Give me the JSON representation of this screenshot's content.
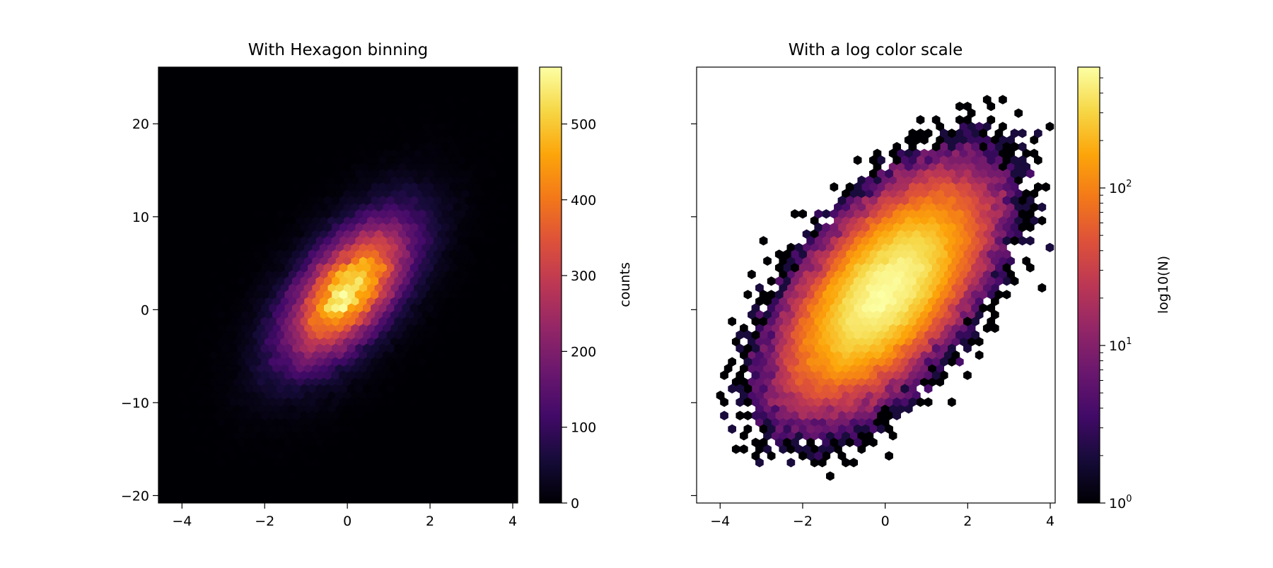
{
  "chart_data": [
    {
      "type": "hexbin",
      "title": "With Hexagon binning",
      "xlim": [
        -4.57,
        4.12
      ],
      "ylim": [
        -20.8,
        26.1
      ],
      "xticks": [
        -4,
        -2,
        0,
        2,
        4
      ],
      "xtick_labels": [
        "−4",
        "−2",
        "0",
        "2",
        "4"
      ],
      "yticks": [
        -20,
        -10,
        0,
        10,
        20
      ],
      "ytick_labels": [
        "−20",
        "−10",
        "0",
        "10",
        "20"
      ],
      "gridsize": 50,
      "color_scale": "linear",
      "colormap": "inferno",
      "colorbar": {
        "label": "counts",
        "range": [
          0,
          575
        ],
        "ticks": [
          0,
          100,
          200,
          300,
          400,
          500
        ],
        "tick_labels": [
          "0",
          "100",
          "200",
          "300",
          "400",
          "500"
        ]
      }
    },
    {
      "type": "hexbin",
      "title": "With a log color scale",
      "xlim": [
        -4.57,
        4.12
      ],
      "ylim": [
        -20.8,
        26.1
      ],
      "xticks": [
        -4,
        -2,
        0,
        2,
        4
      ],
      "xtick_labels": [
        "−4",
        "−2",
        "0",
        "2",
        "4"
      ],
      "yticks": [
        -20,
        -10,
        0,
        10,
        20
      ],
      "ytick_labels": [],
      "shared_y": true,
      "gridsize": 50,
      "color_scale": "log",
      "colormap": "inferno",
      "colorbar": {
        "label": "log10(N)",
        "range": [
          1,
          585
        ],
        "ticks": [
          1,
          10,
          100
        ],
        "tick_labels": [
          "10",
          "10",
          "10"
        ],
        "tick_exponents": [
          "0",
          "1",
          "2"
        ]
      }
    }
  ]
}
